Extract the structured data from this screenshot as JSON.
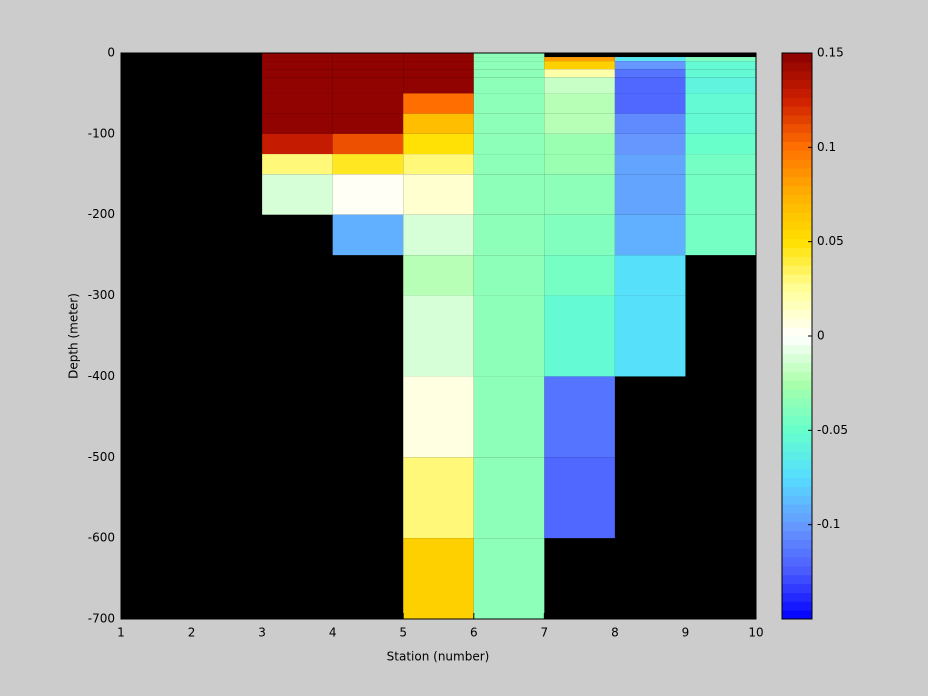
{
  "chart_data": {
    "type": "heatmap",
    "x_label": "Station (number)",
    "y_label": "Depth (meter)",
    "x": [
      1,
      2,
      3,
      4,
      5,
      6,
      7,
      8,
      9,
      10
    ],
    "y": [
      0,
      -5,
      -10,
      -20,
      -30,
      -50,
      -75,
      -100,
      -125,
      -150,
      -200,
      -250,
      -300,
      -350,
      -400,
      -500,
      -600,
      -700
    ],
    "values": [
      [
        null,
        null,
        0.15,
        0.15,
        0.15,
        -0.035,
        null,
        null,
        null
      ],
      [
        null,
        null,
        0.15,
        0.15,
        0.15,
        -0.035,
        0.08,
        -0.07,
        -0.04
      ],
      [
        null,
        null,
        0.15,
        0.15,
        0.15,
        -0.035,
        0.06,
        -0.1,
        -0.055
      ],
      [
        null,
        null,
        0.15,
        0.15,
        0.15,
        -0.035,
        0.02,
        -0.115,
        -0.055
      ],
      [
        null,
        null,
        0.15,
        0.15,
        0.15,
        -0.035,
        -0.015,
        -0.12,
        -0.06
      ],
      [
        null,
        null,
        0.15,
        0.15,
        0.1,
        -0.035,
        -0.02,
        -0.12,
        -0.055
      ],
      [
        null,
        null,
        0.15,
        0.15,
        0.07,
        -0.035,
        -0.02,
        -0.105,
        -0.055
      ],
      [
        null,
        null,
        0.13,
        0.11,
        0.05,
        -0.035,
        -0.03,
        -0.1,
        -0.05
      ],
      [
        null,
        null,
        0.03,
        0.045,
        0.03,
        -0.035,
        -0.03,
        -0.095,
        -0.045
      ],
      [
        null,
        null,
        -0.01,
        0.0,
        0.01,
        -0.035,
        -0.035,
        -0.095,
        -0.045
      ],
      [
        null,
        null,
        null,
        -0.09,
        -0.01,
        -0.035,
        -0.04,
        -0.09,
        -0.045
      ],
      [
        null,
        null,
        null,
        null,
        -0.02,
        -0.035,
        -0.045,
        -0.075,
        null
      ],
      [
        null,
        null,
        null,
        null,
        -0.01,
        -0.035,
        -0.055,
        -0.075,
        null
      ],
      [
        null,
        null,
        null,
        null,
        -0.01,
        -0.035,
        -0.055,
        -0.075,
        null
      ],
      [
        null,
        null,
        null,
        null,
        0.005,
        -0.035,
        -0.115,
        null,
        null
      ],
      [
        null,
        null,
        null,
        null,
        0.03,
        -0.035,
        -0.12,
        null,
        null
      ],
      [
        null,
        null,
        null,
        null,
        0.06,
        -0.035,
        null,
        null,
        null
      ]
    ],
    "xlim": [
      1,
      10
    ],
    "xticks": [
      1,
      2,
      3,
      4,
      5,
      6,
      7,
      8,
      9,
      10
    ],
    "ylim": [
      -700,
      0
    ],
    "yticks": [
      0,
      -100,
      -200,
      -300,
      -400,
      -500,
      -600,
      -700
    ],
    "clim": [
      -0.15,
      0.15
    ],
    "cticks": [
      0.15,
      0.1,
      0.05,
      0,
      -0.05,
      -0.1
    ],
    "colormap": [
      "#0000ff",
      "#4a5aff",
      "#6699ff",
      "#55ddff",
      "#66ffcc",
      "#aaffaa",
      "#ffffff",
      "#ffff99",
      "#ffe000",
      "#ffb000",
      "#ff7000",
      "#d02000",
      "#8b0000"
    ],
    "colormap_levels": 64,
    "background": "#000000"
  }
}
